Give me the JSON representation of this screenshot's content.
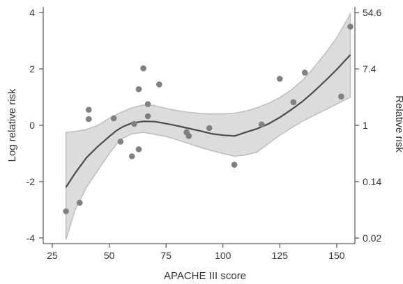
{
  "chart_data": {
    "type": "scatter",
    "xlabel": "APACHE III score",
    "ylabel": "Log relative risk",
    "ylabel_right": "Relative risk",
    "xlim": [
      21,
      158
    ],
    "ylim": [
      -4.2,
      4.2
    ],
    "x_ticks": [
      25,
      50,
      75,
      100,
      125,
      150
    ],
    "y_ticks": [
      -4,
      -2,
      0,
      2,
      4
    ],
    "y_tick_labels": [
      "-4",
      "-2",
      "0",
      "2",
      "4"
    ],
    "right_ticks": [
      {
        "log_value": -4,
        "label": "0.02"
      },
      {
        "log_value": -2,
        "label": "0.14"
      },
      {
        "log_value": 0,
        "label": "1"
      },
      {
        "log_value": 2,
        "label": "7.4"
      },
      {
        "log_value": 4,
        "label": "54.6"
      }
    ],
    "grid": false,
    "colors": {
      "points": "#808080",
      "fit_line": "#4a4a4a",
      "band_fill": "#dcdcdc",
      "band_edge": "#bdbdbd",
      "axis": "#333333"
    },
    "series": [
      {
        "type": "scatter",
        "x": [
          31,
          37,
          41,
          41,
          52,
          55,
          60,
          61,
          63,
          63,
          65,
          67,
          67,
          72,
          84,
          85,
          94,
          105,
          117,
          125,
          131,
          136,
          152,
          156
        ],
        "y": [
          -3.05,
          -2.75,
          0.55,
          0.22,
          0.25,
          -0.58,
          -1.1,
          0.05,
          -0.85,
          1.28,
          2.02,
          0.75,
          0.32,
          1.45,
          -0.25,
          -0.38,
          -0.1,
          -1.4,
          0.03,
          1.65,
          0.82,
          1.87,
          1.02,
          3.5
        ]
      },
      {
        "type": "line",
        "x": [
          31,
          35,
          40,
          45,
          50,
          53,
          56,
          60,
          65,
          70,
          75,
          80,
          85,
          90,
          95,
          100,
          105,
          110,
          115,
          120,
          125,
          130,
          135,
          140,
          145,
          150,
          156
        ],
        "y": [
          -2.2,
          -1.7,
          -1.15,
          -0.75,
          -0.4,
          -0.2,
          -0.05,
          0.08,
          0.14,
          0.13,
          0.06,
          -0.02,
          -0.11,
          -0.2,
          -0.3,
          -0.35,
          -0.38,
          -0.25,
          -0.12,
          0.05,
          0.28,
          0.55,
          0.85,
          1.2,
          1.58,
          1.98,
          2.5
        ]
      },
      {
        "type": "band",
        "x": [
          31,
          35,
          40,
          45,
          50,
          55,
          60,
          65,
          70,
          75,
          80,
          85,
          90,
          95,
          100,
          105,
          110,
          115,
          120,
          125,
          130,
          135,
          140,
          145,
          150,
          156
        ],
        "upper": [
          -0.25,
          -0.22,
          -0.15,
          0.0,
          0.25,
          0.45,
          0.62,
          0.72,
          0.7,
          0.6,
          0.52,
          0.46,
          0.42,
          0.4,
          0.4,
          0.43,
          0.5,
          0.62,
          0.78,
          0.98,
          1.25,
          1.6,
          2.05,
          2.55,
          3.1,
          3.95
        ],
        "lower": [
          -4.05,
          -3.0,
          -2.2,
          -1.6,
          -1.0,
          -0.5,
          -0.3,
          -0.25,
          -0.32,
          -0.4,
          -0.52,
          -0.65,
          -0.78,
          -0.9,
          -1.0,
          -1.1,
          -1.05,
          -0.95,
          -0.65,
          -0.35,
          -0.1,
          0.15,
          0.35,
          0.55,
          0.75,
          1.0
        ]
      }
    ]
  }
}
